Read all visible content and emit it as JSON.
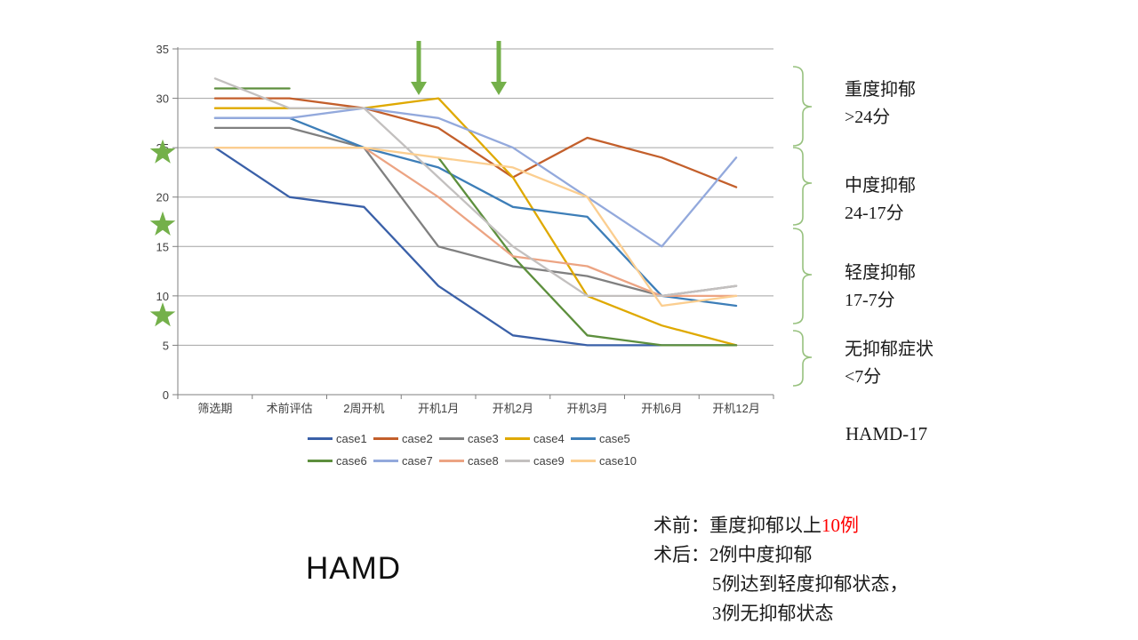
{
  "chart_data": {
    "type": "line",
    "title": "HAMD",
    "categories": [
      "筛选期",
      "术前评估",
      "2周开机",
      "开机1月",
      "开机2月",
      "开机3月",
      "开机6月",
      "开机12月"
    ],
    "y_ticks": [
      0,
      5,
      10,
      15,
      20,
      25,
      30,
      35
    ],
    "ylim": [
      0,
      35
    ],
    "grid": true,
    "legend_position": "bottom",
    "series": [
      {
        "name": "case1",
        "color": "#3a60a8",
        "values": [
          25,
          20,
          19,
          11,
          6,
          5,
          5,
          5
        ]
      },
      {
        "name": "case2",
        "color": "#c35f2b",
        "values": [
          30,
          30,
          29,
          27,
          22,
          26,
          24,
          21
        ]
      },
      {
        "name": "case3",
        "color": "#808080",
        "values": [
          27,
          27,
          25,
          15,
          13,
          12,
          10,
          11
        ]
      },
      {
        "name": "case4",
        "color": "#dfa900",
        "values": [
          29,
          29,
          29,
          30,
          22,
          10,
          7,
          5
        ]
      },
      {
        "name": "case5",
        "color": "#3d7eb8",
        "values": [
          28,
          28,
          25,
          23,
          19,
          18,
          10,
          9
        ]
      },
      {
        "name": "case6",
        "color": "#5d8f3d",
        "values": [
          31,
          31,
          null,
          24,
          14,
          6,
          5,
          5
        ]
      },
      {
        "name": "case7",
        "color": "#93a9dc",
        "values": [
          28,
          28,
          29,
          28,
          25,
          20,
          15,
          24
        ]
      },
      {
        "name": "case8",
        "color": "#eca483",
        "values": [
          25,
          25,
          25,
          20,
          14,
          13,
          10,
          10
        ]
      },
      {
        "name": "case9",
        "color": "#c3c0bf",
        "values": [
          32,
          29,
          29,
          22,
          15,
          10,
          10,
          11
        ]
      },
      {
        "name": "case10",
        "color": "#fbce90",
        "values": [
          25,
          25,
          25,
          24,
          23,
          20,
          9,
          10
        ]
      }
    ]
  },
  "annotations": {
    "severity_levels": [
      {
        "label": "重度抑郁",
        "range": ">24分"
      },
      {
        "label": "中度抑郁",
        "range": "24-17分"
      },
      {
        "label": "轻度抑郁",
        "range": "17-7分"
      },
      {
        "label": "无抑郁症状",
        "range": "<7分"
      }
    ],
    "scale_name": "HAMD-17",
    "star_values": [
      24.5,
      17.2,
      8
    ],
    "arrow_categories": [
      "开机1月",
      "开机2月"
    ]
  },
  "footer": {
    "big_title": "HAMD",
    "summary": {
      "line1_prefix": "术前：重度抑郁以上",
      "line1_red": "10例",
      "line2": "术后：2例中度抑郁",
      "line3": "5例达到轻度抑郁状态，",
      "line4": "3例无抑郁状态"
    }
  },
  "colors": {
    "marker_green": "#74b04a",
    "brace_green": "#97c17e",
    "gridline": "#a3a3a3",
    "axis": "#7f7f7f",
    "tick_label": "#404040"
  }
}
